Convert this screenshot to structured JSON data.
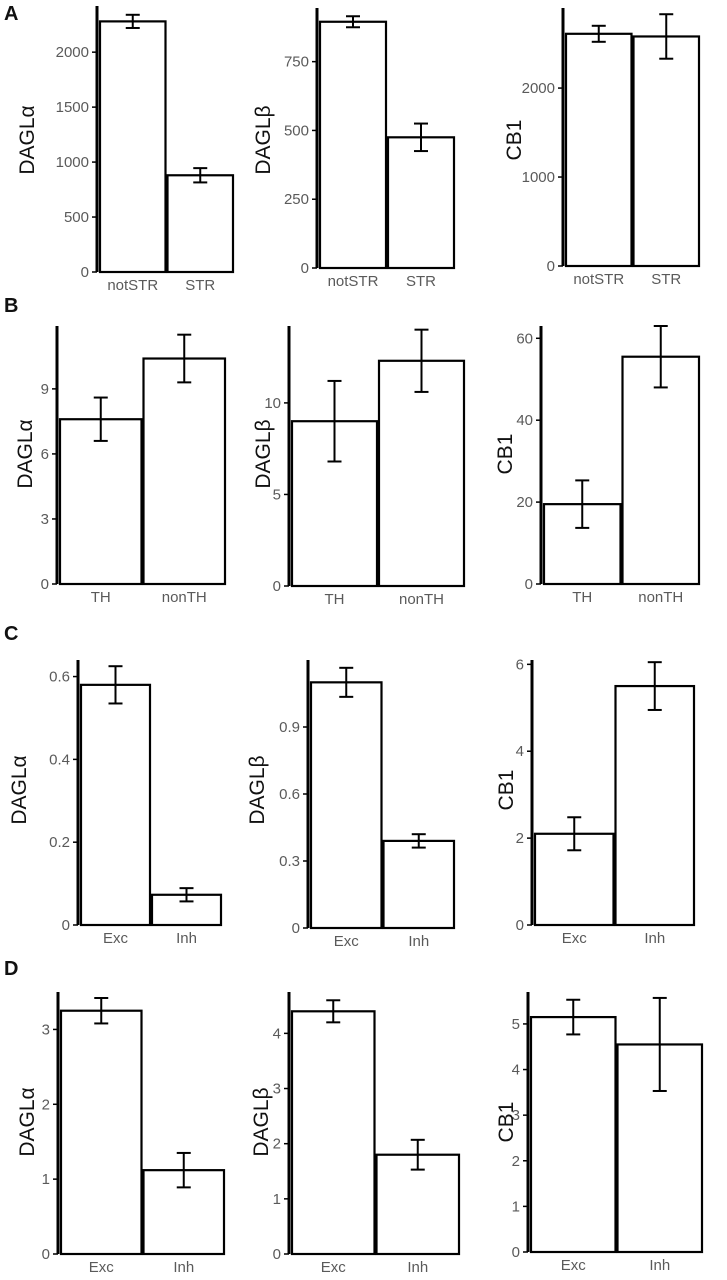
{
  "panels": [
    {
      "letter": "A",
      "charts": [
        0,
        1,
        2
      ]
    },
    {
      "letter": "B",
      "charts": [
        3,
        4,
        5
      ]
    },
    {
      "letter": "C",
      "charts": [
        6,
        7,
        8
      ]
    },
    {
      "letter": "D",
      "charts": [
        9,
        10,
        11
      ]
    }
  ],
  "chart_data": [
    {
      "type": "bar",
      "panel": "A",
      "ylabel": "DAGLα",
      "categories": [
        "notSTR",
        "STR"
      ],
      "values": [
        2280,
        880
      ],
      "errors": [
        60,
        65
      ],
      "yticks": [
        0,
        500,
        1000,
        1500,
        2000
      ],
      "ylim": [
        0,
        2420
      ]
    },
    {
      "type": "bar",
      "panel": "A",
      "ylabel": "DAGLβ",
      "categories": [
        "notSTR",
        "STR"
      ],
      "values": [
        895,
        475
      ],
      "errors": [
        20,
        50
      ],
      "yticks": [
        0,
        250,
        500,
        750
      ],
      "ylim": [
        0,
        945
      ]
    },
    {
      "type": "bar",
      "panel": "A",
      "ylabel": "CB1",
      "categories": [
        "notSTR",
        "STR"
      ],
      "values": [
        2610,
        2580
      ],
      "errors": [
        90,
        250
      ],
      "yticks": [
        0,
        1000,
        2000
      ],
      "ylim": [
        0,
        2900
      ]
    },
    {
      "type": "bar",
      "panel": "B",
      "ylabel": "DAGLα",
      "categories": [
        "TH",
        "nonTH"
      ],
      "values": [
        7.6,
        10.4
      ],
      "errors": [
        1.0,
        1.1
      ],
      "yticks": [
        0,
        3,
        6,
        9
      ],
      "ylim": [
        0,
        11.9
      ]
    },
    {
      "type": "bar",
      "panel": "B",
      "ylabel": "DAGLβ",
      "categories": [
        "TH",
        "nonTH"
      ],
      "values": [
        9.0,
        12.3
      ],
      "errors": [
        2.2,
        1.7
      ],
      "yticks": [
        0,
        5,
        10
      ],
      "ylim": [
        0,
        14.2
      ]
    },
    {
      "type": "bar",
      "panel": "B",
      "ylabel": "CB1",
      "categories": [
        "TH",
        "nonTH"
      ],
      "values": [
        19.5,
        55.5
      ],
      "errors": [
        5.8,
        7.5
      ],
      "yticks": [
        0,
        20,
        40,
        60
      ],
      "ylim": [
        0,
        63
      ]
    },
    {
      "type": "bar",
      "panel": "C",
      "ylabel": "DAGLα",
      "categories": [
        "Exc",
        "Inh"
      ],
      "values": [
        0.58,
        0.073
      ],
      "errors": [
        0.045,
        0.016
      ],
      "yticks": [
        0.0,
        0.2,
        0.4,
        0.6
      ],
      "ylim": [
        0,
        0.64
      ]
    },
    {
      "type": "bar",
      "panel": "C",
      "ylabel": "DAGLβ",
      "categories": [
        "Exc",
        "Inh"
      ],
      "values": [
        1.1,
        0.39
      ],
      "errors": [
        0.065,
        0.03
      ],
      "yticks": [
        0.0,
        0.3,
        0.6,
        0.9
      ],
      "ylim": [
        0,
        1.2
      ]
    },
    {
      "type": "bar",
      "panel": "C",
      "ylabel": "CB1",
      "categories": [
        "Exc",
        "Inh"
      ],
      "values": [
        2.1,
        5.5
      ],
      "errors": [
        0.38,
        0.55
      ],
      "yticks": [
        0,
        2,
        4,
        6
      ],
      "ylim": [
        0,
        6.1
      ]
    },
    {
      "type": "bar",
      "panel": "D",
      "ylabel": "DAGLα",
      "categories": [
        "Exc",
        "Inh"
      ],
      "values": [
        3.25,
        1.12
      ],
      "errors": [
        0.17,
        0.23
      ],
      "yticks": [
        0,
        1,
        2,
        3
      ],
      "ylim": [
        0,
        3.5
      ]
    },
    {
      "type": "bar",
      "panel": "D",
      "ylabel": "DAGLβ",
      "categories": [
        "Exc",
        "Inh"
      ],
      "values": [
        4.4,
        1.8
      ],
      "errors": [
        0.2,
        0.27
      ],
      "yticks": [
        0,
        1,
        2,
        3,
        4
      ],
      "ylim": [
        0,
        4.75
      ]
    },
    {
      "type": "bar",
      "panel": "D",
      "ylabel": "CB1",
      "categories": [
        "Exc",
        "Inh"
      ],
      "values": [
        5.15,
        4.55
      ],
      "errors": [
        0.38,
        1.02
      ],
      "yticks": [
        0,
        1,
        2,
        3,
        4,
        5
      ],
      "ylim": [
        0,
        5.7
      ]
    }
  ]
}
